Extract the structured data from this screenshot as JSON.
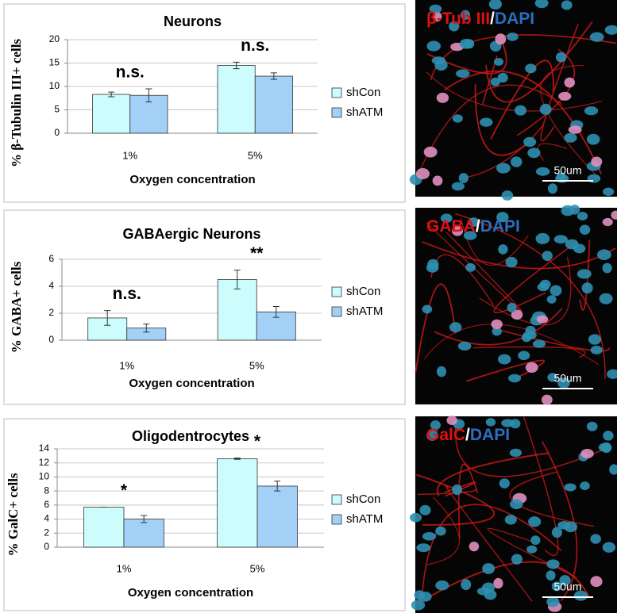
{
  "chart_data": [
    {
      "type": "bar",
      "title": "Neurons",
      "y_label": "% β-Tubulin III+ cells",
      "x_label": "Oxygen concentration",
      "categories": [
        "1%",
        "5%"
      ],
      "series": [
        {
          "name": "shCon",
          "color": "#ccfcfc",
          "values": [
            8.3,
            14.5
          ],
          "errors": [
            0.5,
            0.7
          ]
        },
        {
          "name": "shATM",
          "color": "#a3d0f7",
          "values": [
            8.1,
            12.2
          ],
          "errors": [
            1.4,
            0.7
          ]
        }
      ],
      "annotations": [
        "n.s.",
        "n.s."
      ],
      "ylim": [
        0,
        20
      ],
      "yticks": [
        0,
        5,
        10,
        15,
        20
      ],
      "grid": true,
      "legend": "right"
    },
    {
      "type": "bar",
      "title": "GABAergic Neurons",
      "y_label": "% GABA+ cells",
      "x_label": "Oxygen concentration",
      "categories": [
        "1%",
        "5%"
      ],
      "series": [
        {
          "name": "shCon",
          "color": "#ccfcfc",
          "values": [
            1.65,
            4.5
          ],
          "errors": [
            0.55,
            0.7
          ]
        },
        {
          "name": "shATM",
          "color": "#a3d0f7",
          "values": [
            0.9,
            2.1
          ],
          "errors": [
            0.3,
            0.4
          ]
        }
      ],
      "annotations": [
        "n.s.",
        "**"
      ],
      "ylim": [
        0,
        6
      ],
      "yticks": [
        0,
        2,
        4,
        6
      ],
      "grid": true,
      "legend": "right"
    },
    {
      "type": "bar",
      "title": "Oligodentrocytes",
      "y_label": "% GalC+ cells",
      "x_label": "Oxygen concentration",
      "categories": [
        "1%",
        "5%"
      ],
      "series": [
        {
          "name": "shCon",
          "color": "#ccfcfc",
          "values": [
            5.7,
            12.6
          ],
          "errors": [
            0,
            0.1
          ]
        },
        {
          "name": "shATM",
          "color": "#a3d0f7",
          "values": [
            4.0,
            8.7
          ],
          "errors": [
            0.5,
            0.7
          ]
        }
      ],
      "annotations": [
        "*",
        "*"
      ],
      "ylim": [
        0,
        14
      ],
      "yticks": [
        0,
        2,
        4,
        6,
        8,
        10,
        12,
        14
      ],
      "grid": true,
      "legend": "right"
    }
  ],
  "images": [
    {
      "marker": "β-Tub III",
      "separator": "/",
      "counterstain": "DAPI",
      "scale_bar": "50um"
    },
    {
      "marker": "GABA",
      "separator": "/",
      "counterstain": "DAPI",
      "scale_bar": "50um"
    },
    {
      "marker": "GalC",
      "separator": "/",
      "counterstain": "DAPI",
      "scale_bar": "50um"
    }
  ]
}
